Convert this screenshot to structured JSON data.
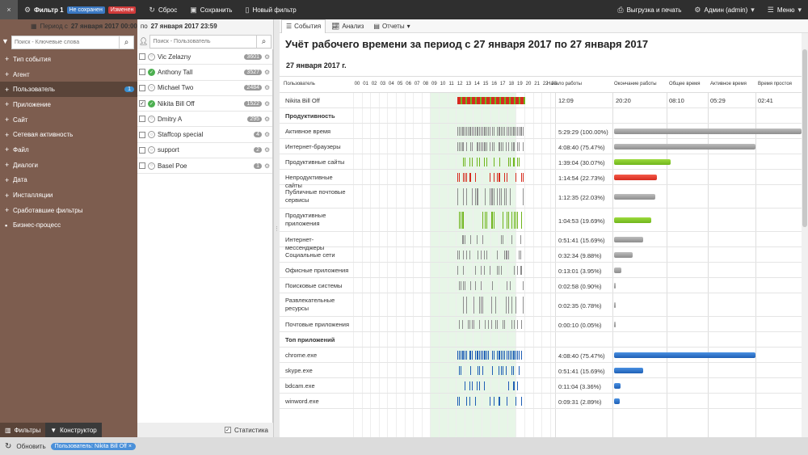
{
  "topbar": {
    "close": "×",
    "filter_title": "Фильтр 1",
    "badge_unsaved": "Не сохранен",
    "badge_changed": "Изменен",
    "reset": "Сброс",
    "save": "Сохранить",
    "new_filter": "Новый фильтр",
    "export": "Выгрузка и печать",
    "admin": "Админ (admin)",
    "menu": "Меню"
  },
  "period": {
    "prefix": "Период с",
    "from": "27 января 2017 00:00",
    "mid": "по",
    "to": "27 января 2017 23:59"
  },
  "left": {
    "search_placeholder": "Поиск - Ключевые слова",
    "items": [
      {
        "label": "Тип события",
        "count": ""
      },
      {
        "label": "Агент",
        "count": ""
      },
      {
        "label": "Пользователь",
        "count": "1"
      },
      {
        "label": "Приложение",
        "count": ""
      },
      {
        "label": "Сайт",
        "count": ""
      },
      {
        "label": "Сетевая активность",
        "count": ""
      },
      {
        "label": "Файл",
        "count": ""
      },
      {
        "label": "Диалоги",
        "count": ""
      },
      {
        "label": "Дата",
        "count": ""
      },
      {
        "label": "Инсталляции",
        "count": ""
      },
      {
        "label": "Сработавшие фильтры",
        "count": ""
      },
      {
        "label": "Бизнес-процесс",
        "count": ""
      }
    ],
    "tab_filters": "Фильтры",
    "tab_constructor": "Конструктор"
  },
  "users": {
    "search_placeholder": "Поиск - Пользователь",
    "rows": [
      {
        "name": "Vic Zelazny",
        "count": "3601",
        "checked": false,
        "online": false
      },
      {
        "name": "Anthony Tall",
        "count": "3527",
        "checked": false,
        "online": true
      },
      {
        "name": "Michael Two",
        "count": "2484",
        "checked": false,
        "online": false
      },
      {
        "name": "Nikita Bill Off",
        "count": "1522",
        "checked": true,
        "online": true
      },
      {
        "name": "Dmitry A",
        "count": "295",
        "checked": false,
        "online": false
      },
      {
        "name": "Staffcop special",
        "count": "4",
        "checked": false,
        "online": false
      },
      {
        "name": "support",
        "count": "2",
        "checked": false,
        "online": false
      },
      {
        "name": "Basel Poe",
        "count": "1",
        "checked": false,
        "online": false
      }
    ],
    "stats": "Статистика"
  },
  "bottom": {
    "refresh": "Обновить",
    "chip": "Пользователь: Nikita Bill Off ×"
  },
  "main": {
    "tabs": [
      "События",
      "Анализ",
      "Отчеты"
    ],
    "title": "Учёт рабочего времени за период с 27 января 2017 по 27 января 2017",
    "date": "27 января 2017 г.",
    "headers": {
      "user": "Пользователь",
      "start": "Начало работы",
      "end": "Окончание работы",
      "total": "Общее время",
      "active": "Активное время",
      "idle": "Время простоя"
    },
    "hours": [
      "00",
      "01",
      "02",
      "03",
      "04",
      "05",
      "06",
      "07",
      "08",
      "09",
      "10",
      "11",
      "12",
      "13",
      "14",
      "15",
      "16",
      "17",
      "18",
      "19",
      "20",
      "21",
      "22",
      "23"
    ],
    "user_row": {
      "name": "Nikita Bill Off",
      "start": "12:09",
      "end": "20:20",
      "total": "08:10",
      "active": "05:29",
      "idle": "02:41"
    },
    "section_prod": "Продуктивность",
    "prod_rows": [
      {
        "label": "Активное время",
        "value": "5:29:29 (100.00%)",
        "pct": 100,
        "color": "gray"
      },
      {
        "label": "Интернет-браузеры",
        "value": "4:08:40 (75.47%)",
        "pct": 75.47,
        "color": "gray"
      },
      {
        "label": "Продуктивные сайты",
        "value": "1:39:04 (30.07%)",
        "pct": 30.07,
        "color": "green"
      },
      {
        "label": "Непродуктивные сайты",
        "value": "1:14:54 (22.73%)",
        "pct": 22.73,
        "color": "red"
      },
      {
        "label": "Публичные почтовые сервисы",
        "value": "1:12:35 (22.03%)",
        "pct": 22.03,
        "color": "gray"
      },
      {
        "label": "Продуктивные приложения",
        "value": "1:04:53 (19.69%)",
        "pct": 19.69,
        "color": "green"
      },
      {
        "label": "Интернет-мессенджеры",
        "value": "0:51:41 (15.69%)",
        "pct": 15.69,
        "color": "gray"
      },
      {
        "label": "Социальные сети",
        "value": "0:32:34 (9.88%)",
        "pct": 9.88,
        "color": "gray"
      },
      {
        "label": "Офисные приложения",
        "value": "0:13:01 (3.95%)",
        "pct": 3.95,
        "color": "gray"
      },
      {
        "label": "Поисковые системы",
        "value": "0:02:58 (0.90%)",
        "pct": 0.9,
        "color": "gray"
      },
      {
        "label": "Развлекательные ресурсы",
        "value": "0:02:35 (0.78%)",
        "pct": 0.78,
        "color": "gray"
      },
      {
        "label": "Почтовые приложения",
        "value": "0:00:10 (0.05%)",
        "pct": 0.05,
        "color": "gray"
      }
    ],
    "section_apps": "Топ приложений",
    "app_rows": [
      {
        "label": "chrome.exe",
        "value": "4:08:40 (75.47%)",
        "pct": 75.47,
        "color": "blue"
      },
      {
        "label": "skype.exe",
        "value": "0:51:41 (15.69%)",
        "pct": 15.69,
        "color": "blue"
      },
      {
        "label": "bdcam.exe",
        "value": "0:11:04 (3.36%)",
        "pct": 3.36,
        "color": "blue"
      },
      {
        "label": "winword.exe",
        "value": "0:09:31 (2.89%)",
        "pct": 2.89,
        "color": "blue"
      }
    ]
  }
}
